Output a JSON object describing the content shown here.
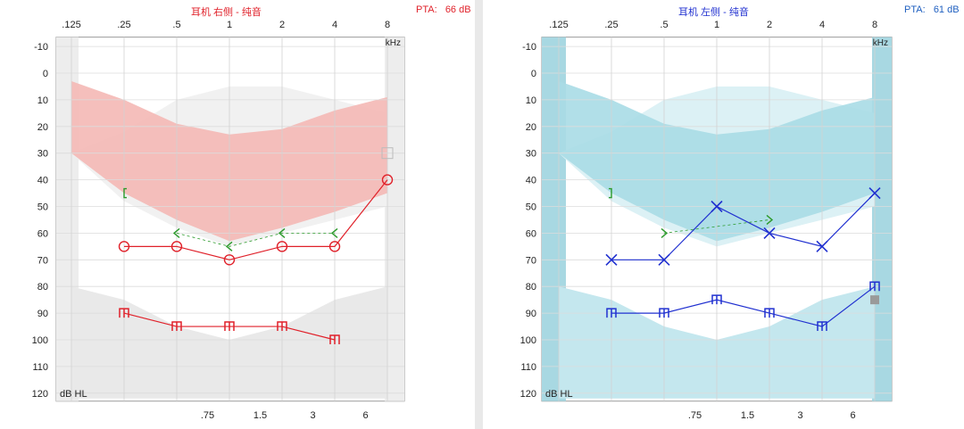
{
  "chart_data": [
    {
      "type": "line",
      "title": "耳机 右侧 - 纯音",
      "pta_label": "PTA:",
      "pta_value": "66 dB",
      "ylabel": "dB HL",
      "xunit": "kHz",
      "top_ticks": [
        ".125",
        ".25",
        ".5",
        "1",
        "2",
        "4",
        "8"
      ],
      "bottom_ticks": [
        ".75",
        "1.5",
        "3",
        "6"
      ],
      "y_ticks": [
        "-10",
        "0",
        "10",
        "20",
        "30",
        "40",
        "50",
        "60",
        "70",
        "80",
        "90",
        "100",
        "110",
        "120"
      ],
      "ylim": [
        -10,
        120
      ],
      "y_inverted": true,
      "colors": {
        "primary": "#e0212a",
        "bone": "#2a9a2a",
        "band": "#f4b8b5"
      },
      "series": [
        {
          "symbol": "O",
          "x": [
            0.25,
            0.5,
            1,
            2,
            4,
            8
          ],
          "values": [
            65,
            65,
            70,
            65,
            65,
            40
          ]
        },
        {
          "symbol": "<",
          "x": [
            0.5,
            1,
            2,
            4
          ],
          "values": [
            60,
            65,
            60,
            60
          ]
        },
        {
          "symbol": "[",
          "x": [
            0.25
          ],
          "values": [
            45
          ]
        },
        {
          "symbol": "m",
          "x": [
            0.25,
            0.5,
            1,
            2,
            4
          ],
          "values": [
            90,
            95,
            95,
            95,
            100
          ]
        }
      ]
    },
    {
      "type": "line",
      "title": "耳机 左侧 - 纯音",
      "pta_label": "PTA:",
      "pta_value": "61 dB",
      "ylabel": "dB HL",
      "xunit": "kHz",
      "top_ticks": [
        ".125",
        ".25",
        ".5",
        "1",
        "2",
        "4",
        "8"
      ],
      "bottom_ticks": [
        ".75",
        "1.5",
        "3",
        "6"
      ],
      "y_ticks": [
        "-10",
        "0",
        "10",
        "20",
        "30",
        "40",
        "50",
        "60",
        "70",
        "80",
        "90",
        "100",
        "110",
        "120"
      ],
      "ylim": [
        -10,
        120
      ],
      "y_inverted": true,
      "colors": {
        "primary": "#2030d0",
        "bone": "#2a9a2a",
        "band": "#a8dbe5"
      },
      "series": [
        {
          "symbol": "X",
          "x": [
            0.25,
            0.5,
            1,
            2,
            4,
            8
          ],
          "values": [
            70,
            70,
            50,
            60,
            65,
            45
          ]
        },
        {
          "symbol": ">",
          "x": [
            0.5,
            2
          ],
          "values": [
            60,
            55
          ]
        },
        {
          "symbol": "]",
          "x": [
            0.25
          ],
          "values": [
            45
          ]
        },
        {
          "symbol": "m",
          "x": [
            0.25,
            0.5,
            1,
            2,
            4,
            8
          ],
          "values": [
            90,
            90,
            85,
            90,
            95,
            80
          ]
        }
      ]
    }
  ]
}
